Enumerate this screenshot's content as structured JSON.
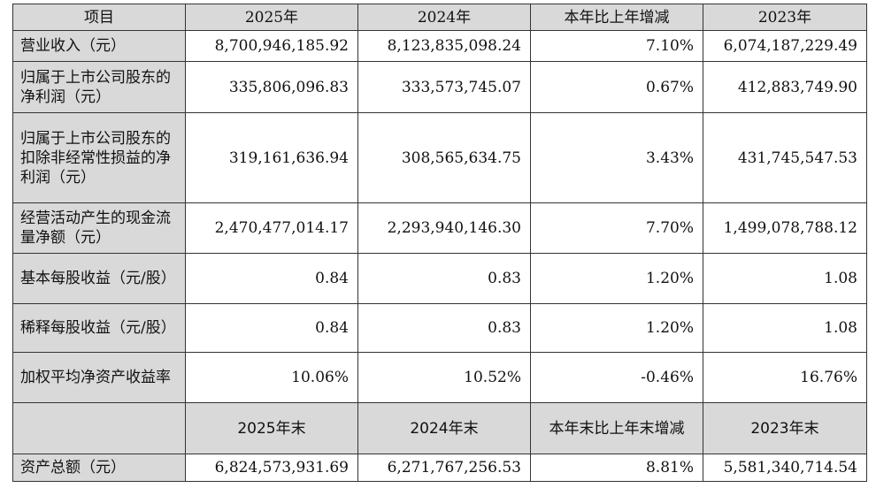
{
  "header": [
    "项目",
    "2025年",
    "2024年",
    "本年比上年增减",
    "2023年"
  ],
  "rows": [
    {
      "label": "营业收入（元）",
      "v2025": "8,700,946,185.92",
      "v2024": "8,123,835,098.24",
      "change": "7.10%",
      "v2023": "6,074,187,229.49"
    },
    {
      "label": "归属于上市公司股东的净利润（元）",
      "v2025": "335,806,096.83",
      "v2024": "333,573,745.07",
      "change": "0.67%",
      "v2023": "412,883,749.90"
    },
    {
      "label": "归属于上市公司股东的扣除非经常性损益的净利润（元）",
      "v2025": "319,161,636.94",
      "v2024": "308,565,634.75",
      "change": "3.43%",
      "v2023": "431,745,547.53"
    },
    {
      "label": "经营活动产生的现金流量净额（元）",
      "v2025": "2,470,477,014.17",
      "v2024": "2,293,940,146.30",
      "change": "7.70%",
      "v2023": "1,499,078,788.12"
    },
    {
      "label": "基本每股收益（元/股）",
      "v2025": "0.84",
      "v2024": "0.83",
      "change": "1.20%",
      "v2023": "1.08"
    },
    {
      "label": "稀释每股收益（元/股）",
      "v2025": "0.84",
      "v2024": "0.83",
      "change": "1.20%",
      "v2023": "1.08"
    },
    {
      "label": "加权平均净资产收益率",
      "v2025": "10.06%",
      "v2024": "10.52%",
      "change": "-0.46%",
      "v2023": "16.76%"
    }
  ],
  "header2": [
    "",
    "2025年末",
    "2024年末",
    "本年末比上年末增减",
    "2023年末"
  ],
  "assets_row": {
    "label": "资产总额（元）",
    "v2025": "6,824,573,931.69",
    "v2024": "6,271,767,256.53",
    "change": "8.81%",
    "v2023": "5,581,340,714.54"
  }
}
